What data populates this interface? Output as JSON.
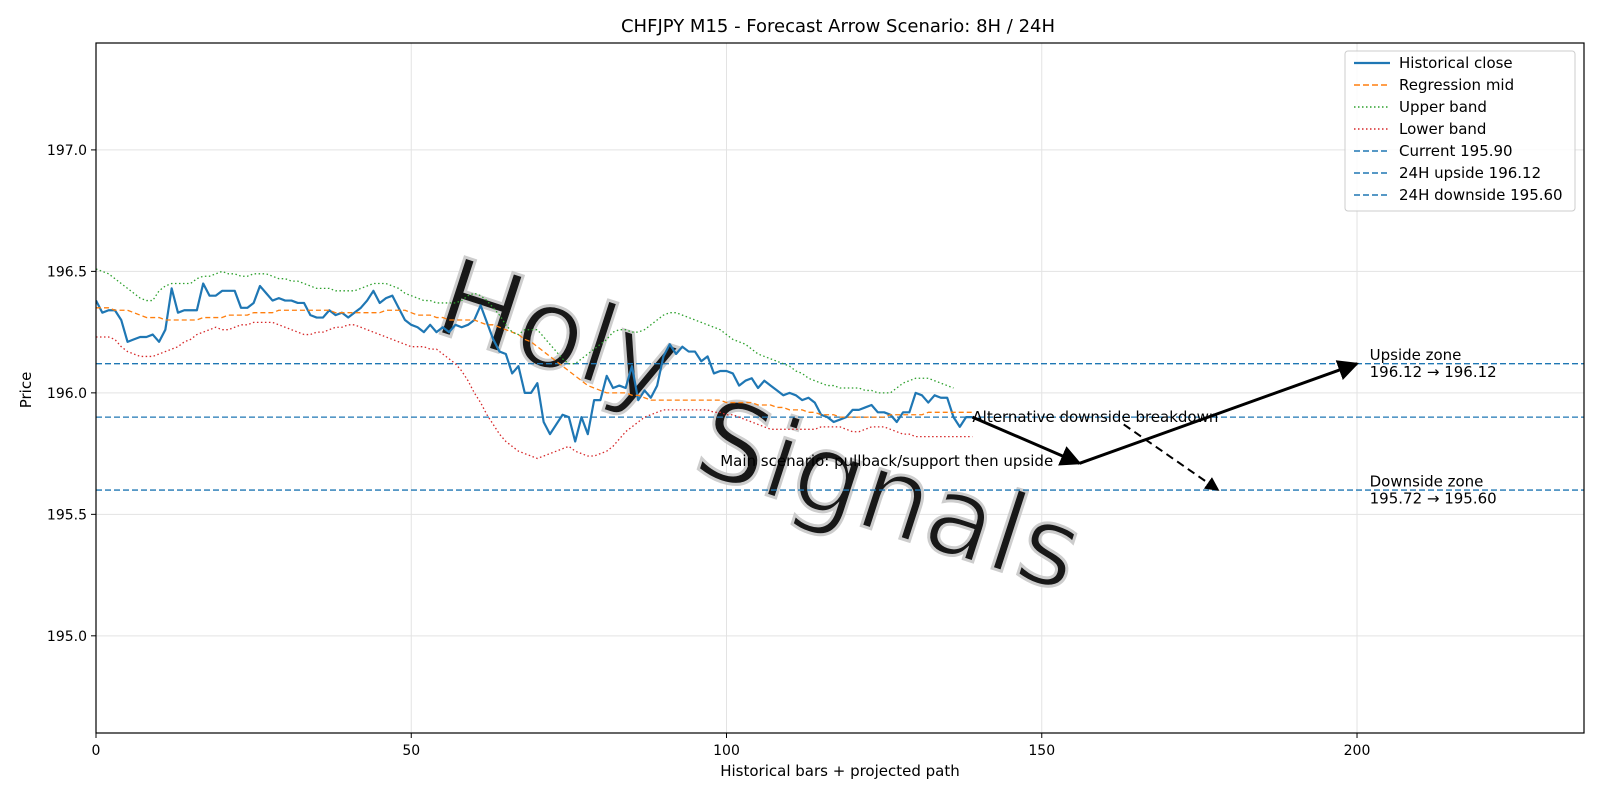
{
  "chart_data": {
    "type": "line",
    "title": "CHFJPY M15 - Forecast Arrow Scenario: 8H / 24H",
    "xlabel": "Historical bars + projected path",
    "ylabel": "Price",
    "xlim": [
      0,
      236
    ],
    "ylim": [
      194.6,
      197.44
    ],
    "x_ticks": [
      0,
      50,
      100,
      150,
      200
    ],
    "y_ticks": [
      195.0,
      195.5,
      196.0,
      196.5,
      197.0
    ],
    "grid": true,
    "legend_position": "top-right",
    "series": [
      {
        "name": "Historical close",
        "style": "solid",
        "color": "#1f77b4",
        "x_start": 0,
        "values": [
          196.38,
          196.33,
          196.34,
          196.34,
          196.3,
          196.21,
          196.22,
          196.23,
          196.23,
          196.24,
          196.21,
          196.26,
          196.43,
          196.33,
          196.34,
          196.34,
          196.34,
          196.45,
          196.4,
          196.4,
          196.42,
          196.42,
          196.42,
          196.35,
          196.35,
          196.37,
          196.44,
          196.41,
          196.38,
          196.39,
          196.38,
          196.38,
          196.37,
          196.37,
          196.32,
          196.31,
          196.31,
          196.34,
          196.32,
          196.33,
          196.31,
          196.33,
          196.35,
          196.38,
          196.42,
          196.37,
          196.39,
          196.4,
          196.35,
          196.3,
          196.28,
          196.27,
          196.25,
          196.28,
          196.25,
          196.27,
          196.25,
          196.28,
          196.27,
          196.28,
          196.3,
          196.36,
          196.29,
          196.22,
          196.17,
          196.16,
          196.08,
          196.11,
          196.0,
          196.0,
          196.04,
          195.88,
          195.83,
          195.87,
          195.91,
          195.9,
          195.8,
          195.9,
          195.83,
          195.97,
          195.97,
          196.07,
          196.02,
          196.03,
          196.02,
          196.11,
          195.97,
          196.01,
          195.98,
          196.03,
          196.15,
          196.2,
          196.16,
          196.19,
          196.17,
          196.17,
          196.13,
          196.15,
          196.08,
          196.09,
          196.09,
          196.08,
          196.03,
          196.05,
          196.06,
          196.02,
          196.05,
          196.03,
          196.01,
          195.99,
          196.0,
          195.99,
          195.97,
          195.98,
          195.96,
          195.91,
          195.9,
          195.88,
          195.89,
          195.9,
          195.93,
          195.93,
          195.94,
          195.95,
          195.92,
          195.92,
          195.91,
          195.88,
          195.92,
          195.92,
          196.0,
          195.99,
          195.96,
          195.99,
          195.98,
          195.98,
          195.9,
          195.86,
          195.9,
          195.9
        ]
      },
      {
        "name": "Regression mid",
        "style": "dashed",
        "color": "#ff7f0e",
        "x_start": 0,
        "values": [
          196.35,
          196.35,
          196.35,
          196.34,
          196.34,
          196.34,
          196.33,
          196.32,
          196.31,
          196.31,
          196.31,
          196.3,
          196.3,
          196.3,
          196.3,
          196.3,
          196.3,
          196.31,
          196.31,
          196.31,
          196.31,
          196.32,
          196.32,
          196.32,
          196.32,
          196.33,
          196.33,
          196.33,
          196.33,
          196.34,
          196.34,
          196.34,
          196.34,
          196.34,
          196.34,
          196.34,
          196.34,
          196.34,
          196.33,
          196.33,
          196.33,
          196.33,
          196.33,
          196.33,
          196.33,
          196.33,
          196.34,
          196.34,
          196.34,
          196.34,
          196.33,
          196.32,
          196.32,
          196.32,
          196.31,
          196.31,
          196.3,
          196.3,
          196.3,
          196.3,
          196.3,
          196.29,
          196.28,
          196.28,
          196.27,
          196.26,
          196.25,
          196.24,
          196.22,
          196.21,
          196.19,
          196.17,
          196.15,
          196.13,
          196.11,
          196.09,
          196.07,
          196.05,
          196.03,
          196.02,
          196.01,
          196.0,
          196.0,
          196.0,
          196.0,
          195.99,
          195.99,
          195.98,
          195.97,
          195.97,
          195.97,
          195.97,
          195.97,
          195.97,
          195.97,
          195.97,
          195.97,
          195.97,
          195.97,
          195.97,
          195.96,
          195.96,
          195.96,
          195.96,
          195.96,
          195.95,
          195.95,
          195.95,
          195.94,
          195.94,
          195.93,
          195.93,
          195.93,
          195.92,
          195.92,
          195.91,
          195.91,
          195.91,
          195.9,
          195.9,
          195.9,
          195.9,
          195.9,
          195.9,
          195.9,
          195.9,
          195.91,
          195.91,
          195.91,
          195.91,
          195.91,
          195.91,
          195.92,
          195.92,
          195.92,
          195.92,
          195.92,
          195.92,
          195.92,
          195.92
        ]
      },
      {
        "name": "Upper band",
        "style": "dotted",
        "color": "#2ca02c",
        "x_start": 0,
        "values": [
          196.51,
          196.5,
          196.49,
          196.47,
          196.45,
          196.43,
          196.41,
          196.39,
          196.38,
          196.38,
          196.42,
          196.44,
          196.45,
          196.45,
          196.45,
          196.45,
          196.47,
          196.48,
          196.48,
          196.49,
          196.5,
          196.49,
          196.49,
          196.48,
          196.48,
          196.49,
          196.49,
          196.49,
          196.48,
          196.47,
          196.47,
          196.46,
          196.46,
          196.45,
          196.44,
          196.43,
          196.43,
          196.43,
          196.42,
          196.42,
          196.42,
          196.42,
          196.43,
          196.44,
          196.45,
          196.45,
          196.45,
          196.44,
          196.43,
          196.41,
          196.4,
          196.39,
          196.38,
          196.38,
          196.37,
          196.37,
          196.37,
          196.37,
          196.38,
          196.4,
          196.41,
          196.4,
          196.38,
          196.35,
          196.32,
          196.28,
          196.25,
          196.24,
          196.26,
          196.26,
          196.26,
          196.23,
          196.2,
          196.17,
          196.14,
          196.12,
          196.12,
          196.14,
          196.16,
          196.18,
          196.2,
          196.22,
          196.25,
          196.26,
          196.26,
          196.25,
          196.25,
          196.26,
          196.28,
          196.3,
          196.32,
          196.33,
          196.33,
          196.32,
          196.31,
          196.3,
          196.29,
          196.28,
          196.27,
          196.26,
          196.24,
          196.22,
          196.21,
          196.2,
          196.18,
          196.16,
          196.15,
          196.14,
          196.13,
          196.12,
          196.11,
          196.09,
          196.08,
          196.06,
          196.05,
          196.04,
          196.03,
          196.03,
          196.02,
          196.02,
          196.02,
          196.02,
          196.01,
          196.01,
          196.0,
          196.0,
          196.0,
          196.02,
          196.04,
          196.05,
          196.06,
          196.06,
          196.06,
          196.05,
          196.04,
          196.03,
          196.02
        ]
      },
      {
        "name": "Lower band",
        "style": "dotted",
        "color": "#d62728",
        "x_start": 0,
        "values": [
          196.23,
          196.23,
          196.23,
          196.22,
          196.19,
          196.17,
          196.16,
          196.15,
          196.15,
          196.15,
          196.16,
          196.17,
          196.18,
          196.19,
          196.21,
          196.22,
          196.24,
          196.25,
          196.26,
          196.27,
          196.26,
          196.26,
          196.27,
          196.28,
          196.28,
          196.29,
          196.29,
          196.29,
          196.29,
          196.28,
          196.27,
          196.26,
          196.25,
          196.24,
          196.24,
          196.25,
          196.25,
          196.26,
          196.27,
          196.27,
          196.28,
          196.28,
          196.27,
          196.26,
          196.25,
          196.24,
          196.23,
          196.22,
          196.21,
          196.2,
          196.19,
          196.19,
          196.19,
          196.18,
          196.18,
          196.16,
          196.14,
          196.12,
          196.09,
          196.05,
          196.0,
          195.96,
          195.91,
          195.87,
          195.83,
          195.8,
          195.78,
          195.76,
          195.75,
          195.74,
          195.73,
          195.74,
          195.75,
          195.76,
          195.77,
          195.78,
          195.76,
          195.75,
          195.74,
          195.74,
          195.75,
          195.76,
          195.78,
          195.81,
          195.84,
          195.86,
          195.88,
          195.9,
          195.91,
          195.92,
          195.93,
          195.93,
          195.93,
          195.93,
          195.93,
          195.93,
          195.93,
          195.93,
          195.92,
          195.92,
          195.91,
          195.91,
          195.9,
          195.89,
          195.88,
          195.87,
          195.86,
          195.85,
          195.85,
          195.85,
          195.85,
          195.85,
          195.85,
          195.85,
          195.85,
          195.86,
          195.86,
          195.86,
          195.86,
          195.85,
          195.84,
          195.84,
          195.85,
          195.86,
          195.86,
          195.86,
          195.85,
          195.84,
          195.83,
          195.83,
          195.82,
          195.82,
          195.82,
          195.82,
          195.82,
          195.82,
          195.82,
          195.82,
          195.82,
          195.82
        ]
      }
    ],
    "horizontal_lines": [
      {
        "name": "Current 195.90",
        "y": 195.9,
        "color": "#1f77b4",
        "style": "dashed"
      },
      {
        "name": "24H upside 196.12",
        "y": 196.12,
        "color": "#1f77b4",
        "style": "dashed"
      },
      {
        "name": "24H downside 195.60",
        "y": 195.6,
        "color": "#1f77b4",
        "style": "dashed"
      }
    ],
    "arrows": [
      {
        "name": "main-leg-1",
        "from": [
          139,
          195.9
        ],
        "to": [
          156,
          195.71
        ],
        "style": "solid"
      },
      {
        "name": "main-leg-2",
        "from": [
          156,
          195.71
        ],
        "to": [
          200,
          196.12
        ],
        "style": "solid"
      },
      {
        "name": "alternative",
        "from": [
          163,
          195.87
        ],
        "to": [
          178,
          195.6
        ],
        "style": "dashed"
      }
    ],
    "annotations": [
      {
        "text": "Main scenario: pullback/support then upside",
        "x": 99,
        "y": 195.72
      },
      {
        "text": "Alternative downside breakdown",
        "x": 139,
        "y": 195.9
      },
      {
        "text": "Upside zone",
        "x": 202,
        "y": 196.155
      },
      {
        "text": "196.12 → 196.12",
        "x": 202,
        "y": 196.085
      },
      {
        "text": "Downside zone",
        "x": 202,
        "y": 195.635
      },
      {
        "text": "195.72 → 195.60",
        "x": 202,
        "y": 195.565
      }
    ],
    "watermark": "HolySignals"
  }
}
